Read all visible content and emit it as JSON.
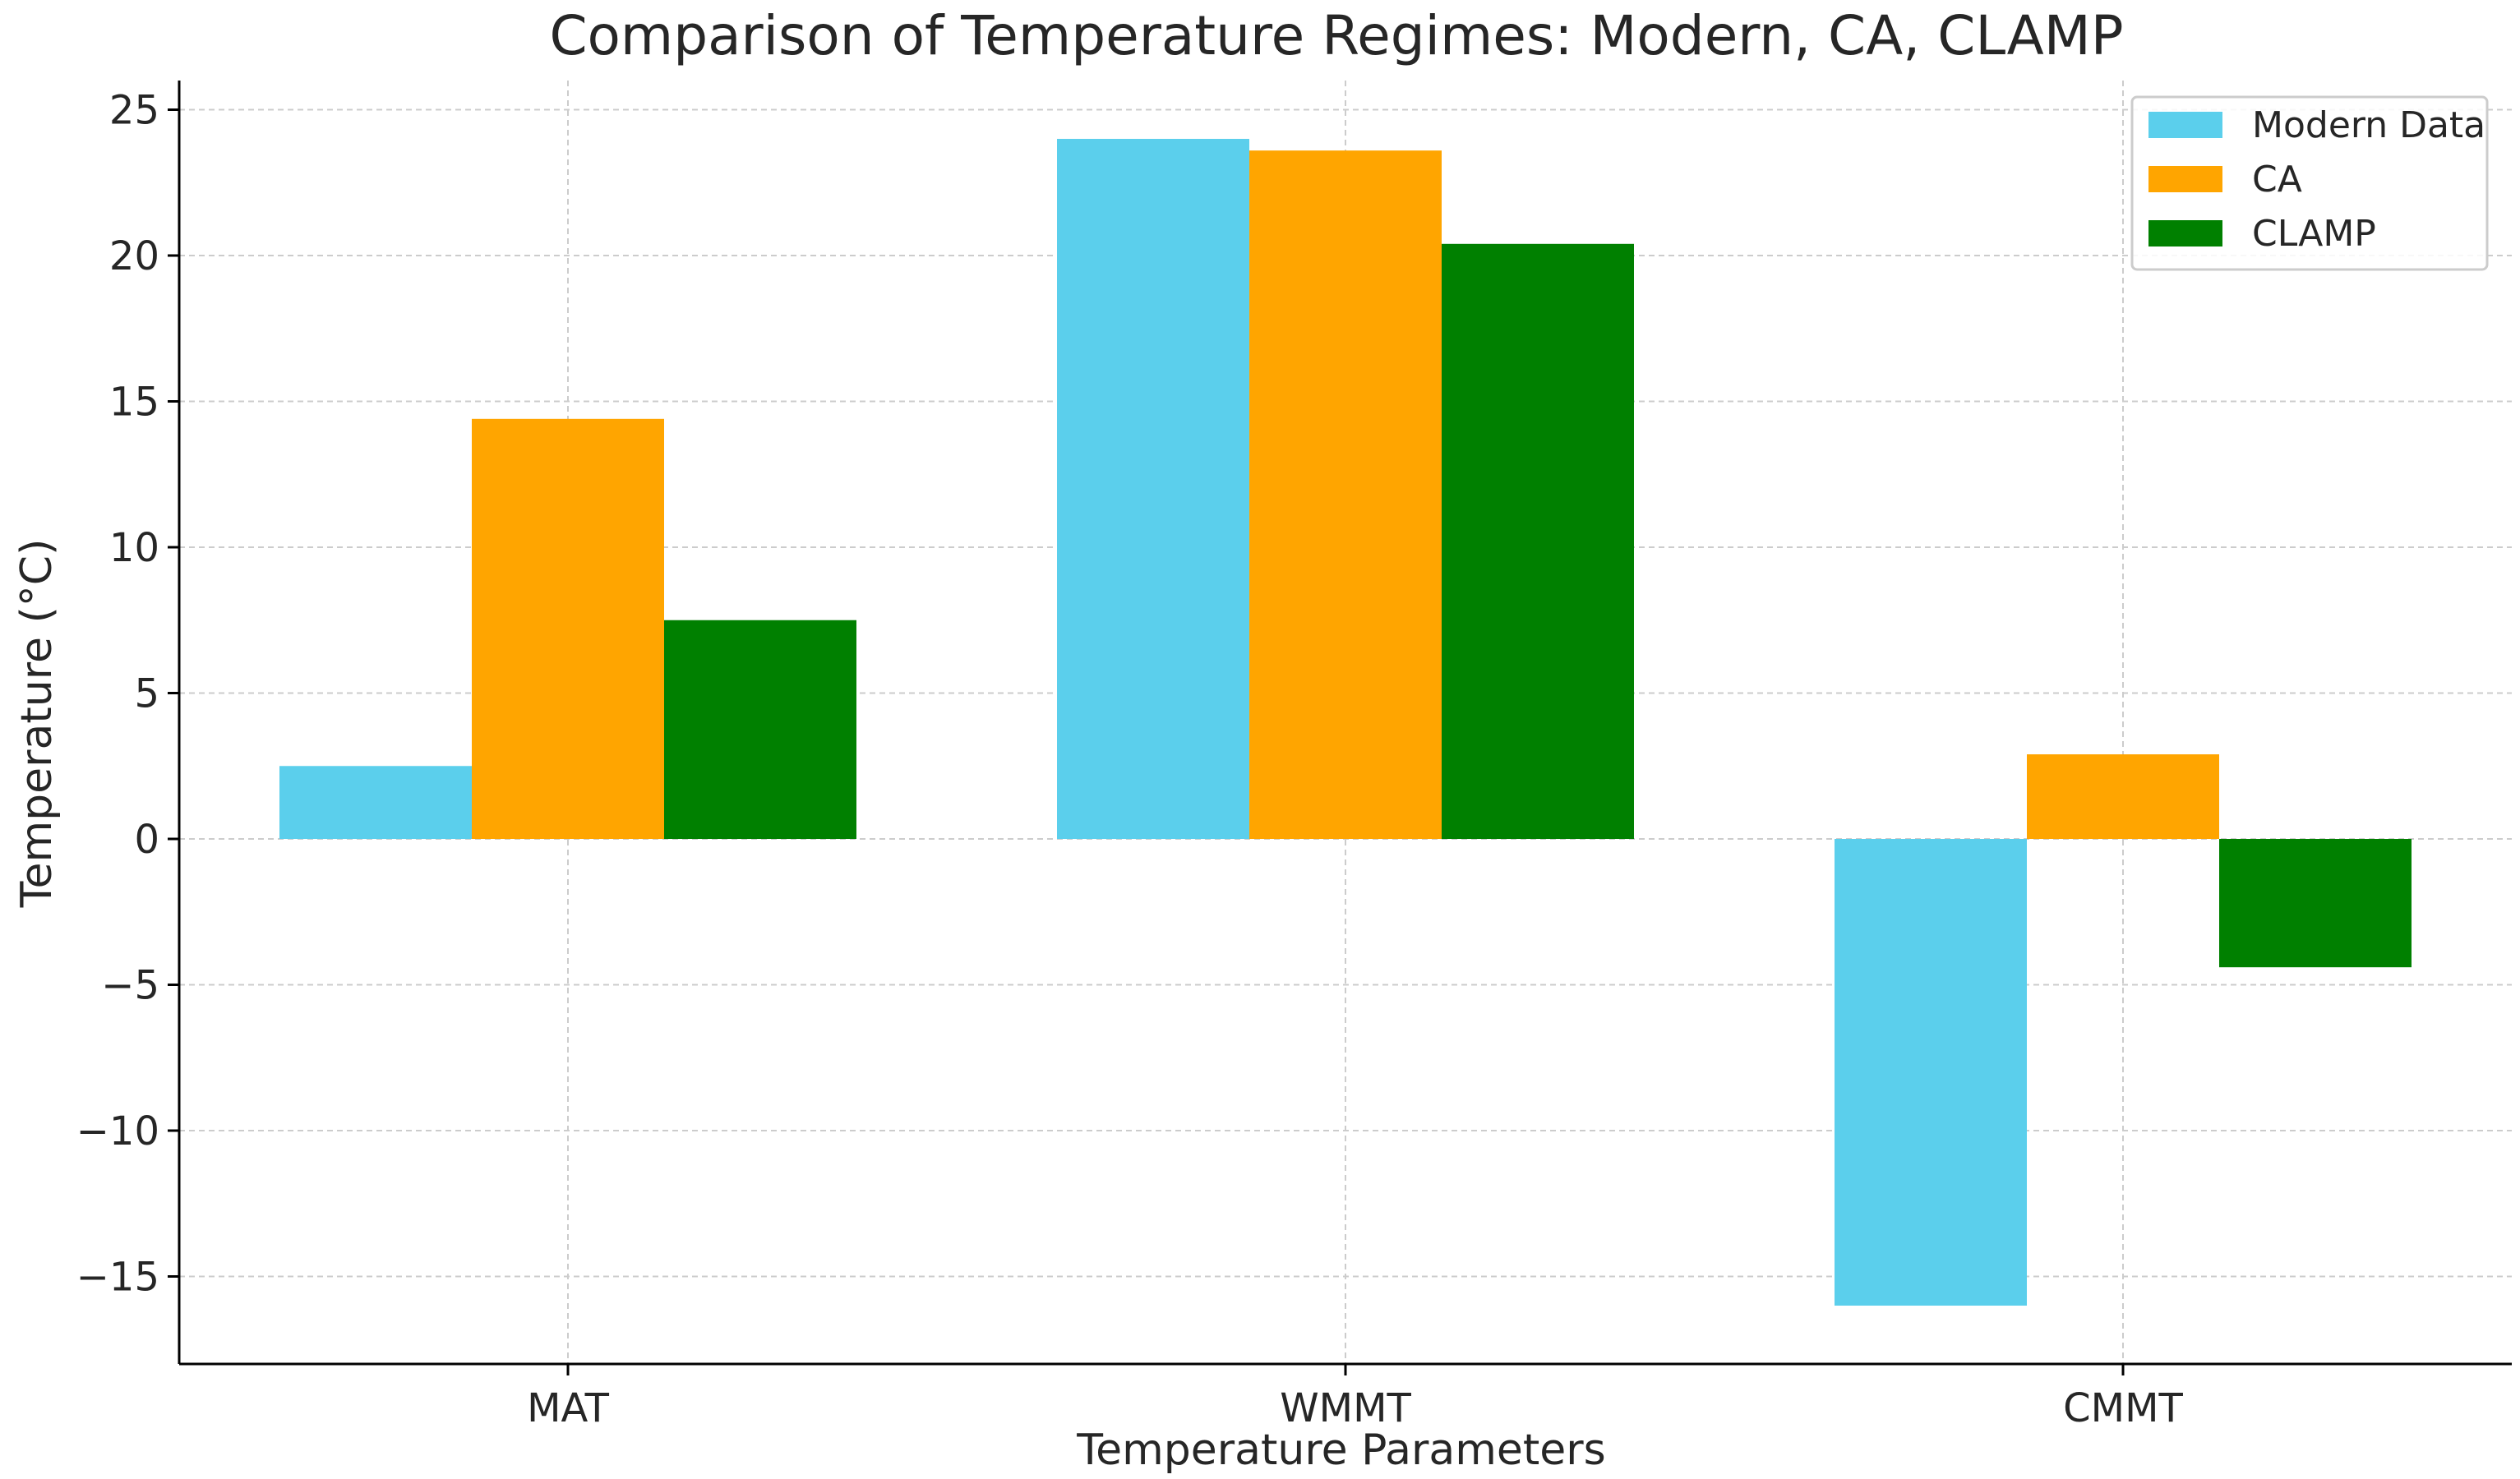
{
  "chart_data": {
    "type": "bar",
    "title": "Comparison of Temperature Regimes: Modern, CA, CLAMP",
    "xlabel": "Temperature Parameters",
    "ylabel": "Temperature (°C)",
    "categories": [
      "MAT",
      "WMMT",
      "CMMT"
    ],
    "ylim": [
      -18,
      26
    ],
    "yticks": [
      -15,
      -10,
      -5,
      0,
      5,
      10,
      15,
      20,
      25
    ],
    "ytick_labels": [
      "−15",
      "−10",
      "−5",
      "0",
      "5",
      "10",
      "15",
      "20",
      "25"
    ],
    "grid": true,
    "legend_position": "top-right",
    "series": [
      {
        "name": "Modern Data",
        "color": "#5bcfec",
        "values": [
          2.5,
          24.0,
          -16.0
        ]
      },
      {
        "name": "CA",
        "color": "#ffa500",
        "values": [
          14.4,
          23.6,
          2.9
        ]
      },
      {
        "name": "CLAMP",
        "color": "#008000",
        "values": [
          7.5,
          20.4,
          -4.4
        ]
      }
    ]
  }
}
